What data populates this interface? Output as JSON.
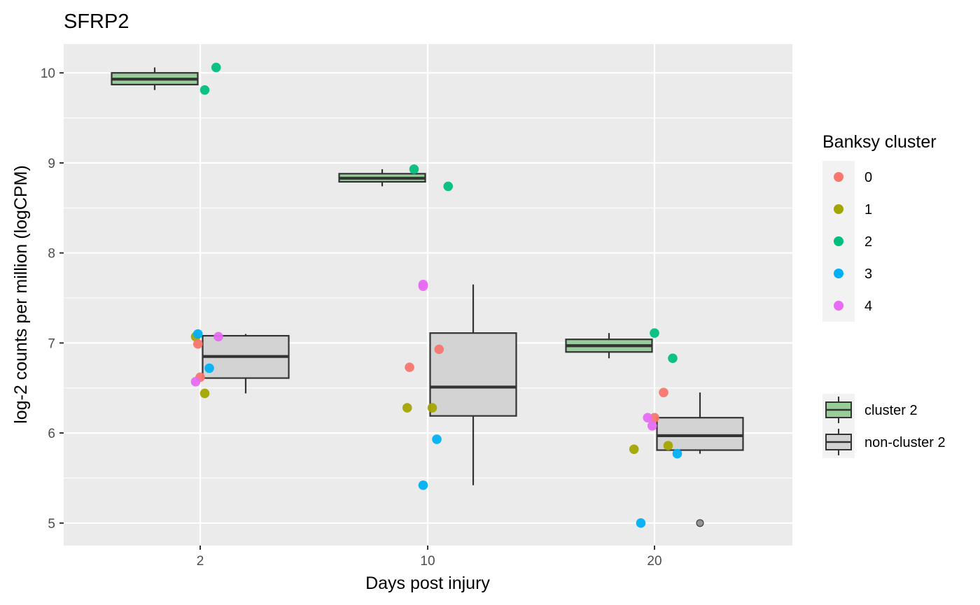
{
  "chart_data": {
    "type": "boxplot",
    "title": "SFRP2",
    "xlabel": "Days post injury",
    "ylabel": "log-2 counts per million (logCPM)",
    "categories": [
      "2",
      "10",
      "20"
    ],
    "ylim": [
      4.75,
      10.32
    ],
    "yticks": [
      5,
      6,
      7,
      8,
      9,
      10
    ],
    "grid": true,
    "legend_position": "right",
    "colors": {
      "panel": "#ebebeb",
      "grid": "#ffffff",
      "cluster_0": "#f8766d",
      "cluster_1": "#a3a500",
      "cluster_2": "#00bf7d",
      "cluster_3": "#00b0f6",
      "cluster_4": "#e76bf3",
      "box_cluster2": "#98cc98",
      "box_noncluster2": "#d3d3d3",
      "outline": "#333333"
    },
    "box_series": [
      {
        "name": "cluster 2",
        "fill": "#98cc98",
        "boxes": [
          {
            "category": "2",
            "lower_whisker": 9.81,
            "q1": 9.87,
            "median": 9.93,
            "q3": 10.0,
            "upper_whisker": 10.06,
            "outliers": []
          },
          {
            "category": "10",
            "lower_whisker": 8.74,
            "q1": 8.79,
            "median": 8.83,
            "q3": 8.88,
            "upper_whisker": 8.93,
            "outliers": []
          },
          {
            "category": "20",
            "lower_whisker": 6.83,
            "q1": 6.9,
            "median": 6.97,
            "q3": 7.04,
            "upper_whisker": 7.11,
            "outliers": []
          }
        ]
      },
      {
        "name": "non-cluster 2",
        "fill": "#d3d3d3",
        "boxes": [
          {
            "category": "2",
            "lower_whisker": 6.44,
            "q1": 6.61,
            "median": 6.85,
            "q3": 7.08,
            "upper_whisker": 7.1,
            "outliers": []
          },
          {
            "category": "10",
            "lower_whisker": 5.42,
            "q1": 6.19,
            "median": 6.51,
            "q3": 7.11,
            "upper_whisker": 7.65,
            "outliers": []
          },
          {
            "category": "20",
            "lower_whisker": 5.77,
            "q1": 5.81,
            "median": 5.97,
            "q3": 6.17,
            "upper_whisker": 6.45,
            "outliers": [
              5.0
            ]
          }
        ]
      }
    ],
    "points": [
      {
        "category": "2",
        "x_offset": -0.02,
        "y": 7.07,
        "cluster": "1"
      },
      {
        "category": "2",
        "x_offset": -0.01,
        "y": 6.99,
        "cluster": "0"
      },
      {
        "category": "2",
        "x_offset": -0.01,
        "y": 7.1,
        "cluster": "3"
      },
      {
        "category": "2",
        "x_offset": 0.0,
        "y": 6.62,
        "cluster": "0"
      },
      {
        "category": "2",
        "x_offset": -0.02,
        "y": 6.57,
        "cluster": "4"
      },
      {
        "category": "2",
        "x_offset": 0.02,
        "y": 6.44,
        "cluster": "1"
      },
      {
        "category": "2",
        "x_offset": 0.04,
        "y": 6.72,
        "cluster": "3"
      },
      {
        "category": "2",
        "x_offset": 0.08,
        "y": 7.07,
        "cluster": "4"
      },
      {
        "category": "2",
        "x_offset": 0.02,
        "y": 9.81,
        "cluster": "2"
      },
      {
        "category": "2",
        "x_offset": 0.07,
        "y": 10.06,
        "cluster": "2"
      },
      {
        "category": "10",
        "x_offset": -0.06,
        "y": 8.93,
        "cluster": "2"
      },
      {
        "category": "10",
        "x_offset": 0.09,
        "y": 8.74,
        "cluster": "2"
      },
      {
        "category": "10",
        "x_offset": -0.02,
        "y": 7.65,
        "cluster": "4"
      },
      {
        "category": "10",
        "x_offset": -0.02,
        "y": 7.63,
        "cluster": "4"
      },
      {
        "category": "10",
        "x_offset": 0.05,
        "y": 6.93,
        "cluster": "0"
      },
      {
        "category": "10",
        "x_offset": -0.08,
        "y": 6.73,
        "cluster": "0"
      },
      {
        "category": "10",
        "x_offset": -0.09,
        "y": 6.28,
        "cluster": "1"
      },
      {
        "category": "10",
        "x_offset": 0.02,
        "y": 6.28,
        "cluster": "1"
      },
      {
        "category": "10",
        "x_offset": 0.04,
        "y": 5.93,
        "cluster": "3"
      },
      {
        "category": "10",
        "x_offset": -0.02,
        "y": 5.42,
        "cluster": "3"
      },
      {
        "category": "20",
        "x_offset": 0.0,
        "y": 7.11,
        "cluster": "2"
      },
      {
        "category": "20",
        "x_offset": 0.08,
        "y": 6.83,
        "cluster": "2"
      },
      {
        "category": "20",
        "x_offset": 0.04,
        "y": 6.45,
        "cluster": "0"
      },
      {
        "category": "20",
        "x_offset": 0.0,
        "y": 6.17,
        "cluster": "0"
      },
      {
        "category": "20",
        "x_offset": -0.03,
        "y": 6.17,
        "cluster": "4"
      },
      {
        "category": "20",
        "x_offset": -0.01,
        "y": 6.08,
        "cluster": "4"
      },
      {
        "category": "20",
        "x_offset": -0.09,
        "y": 5.82,
        "cluster": "1"
      },
      {
        "category": "20",
        "x_offset": 0.06,
        "y": 5.86,
        "cluster": "1"
      },
      {
        "category": "20",
        "x_offset": 0.1,
        "y": 5.77,
        "cluster": "3"
      },
      {
        "category": "20",
        "x_offset": -0.06,
        "y": 5.0,
        "cluster": "3"
      }
    ],
    "legend_points": {
      "title": "Banksy cluster",
      "entries": [
        "0",
        "1",
        "2",
        "3",
        "4"
      ]
    },
    "legend_boxes": {
      "entries": [
        "cluster 2",
        "non-cluster 2"
      ]
    }
  }
}
